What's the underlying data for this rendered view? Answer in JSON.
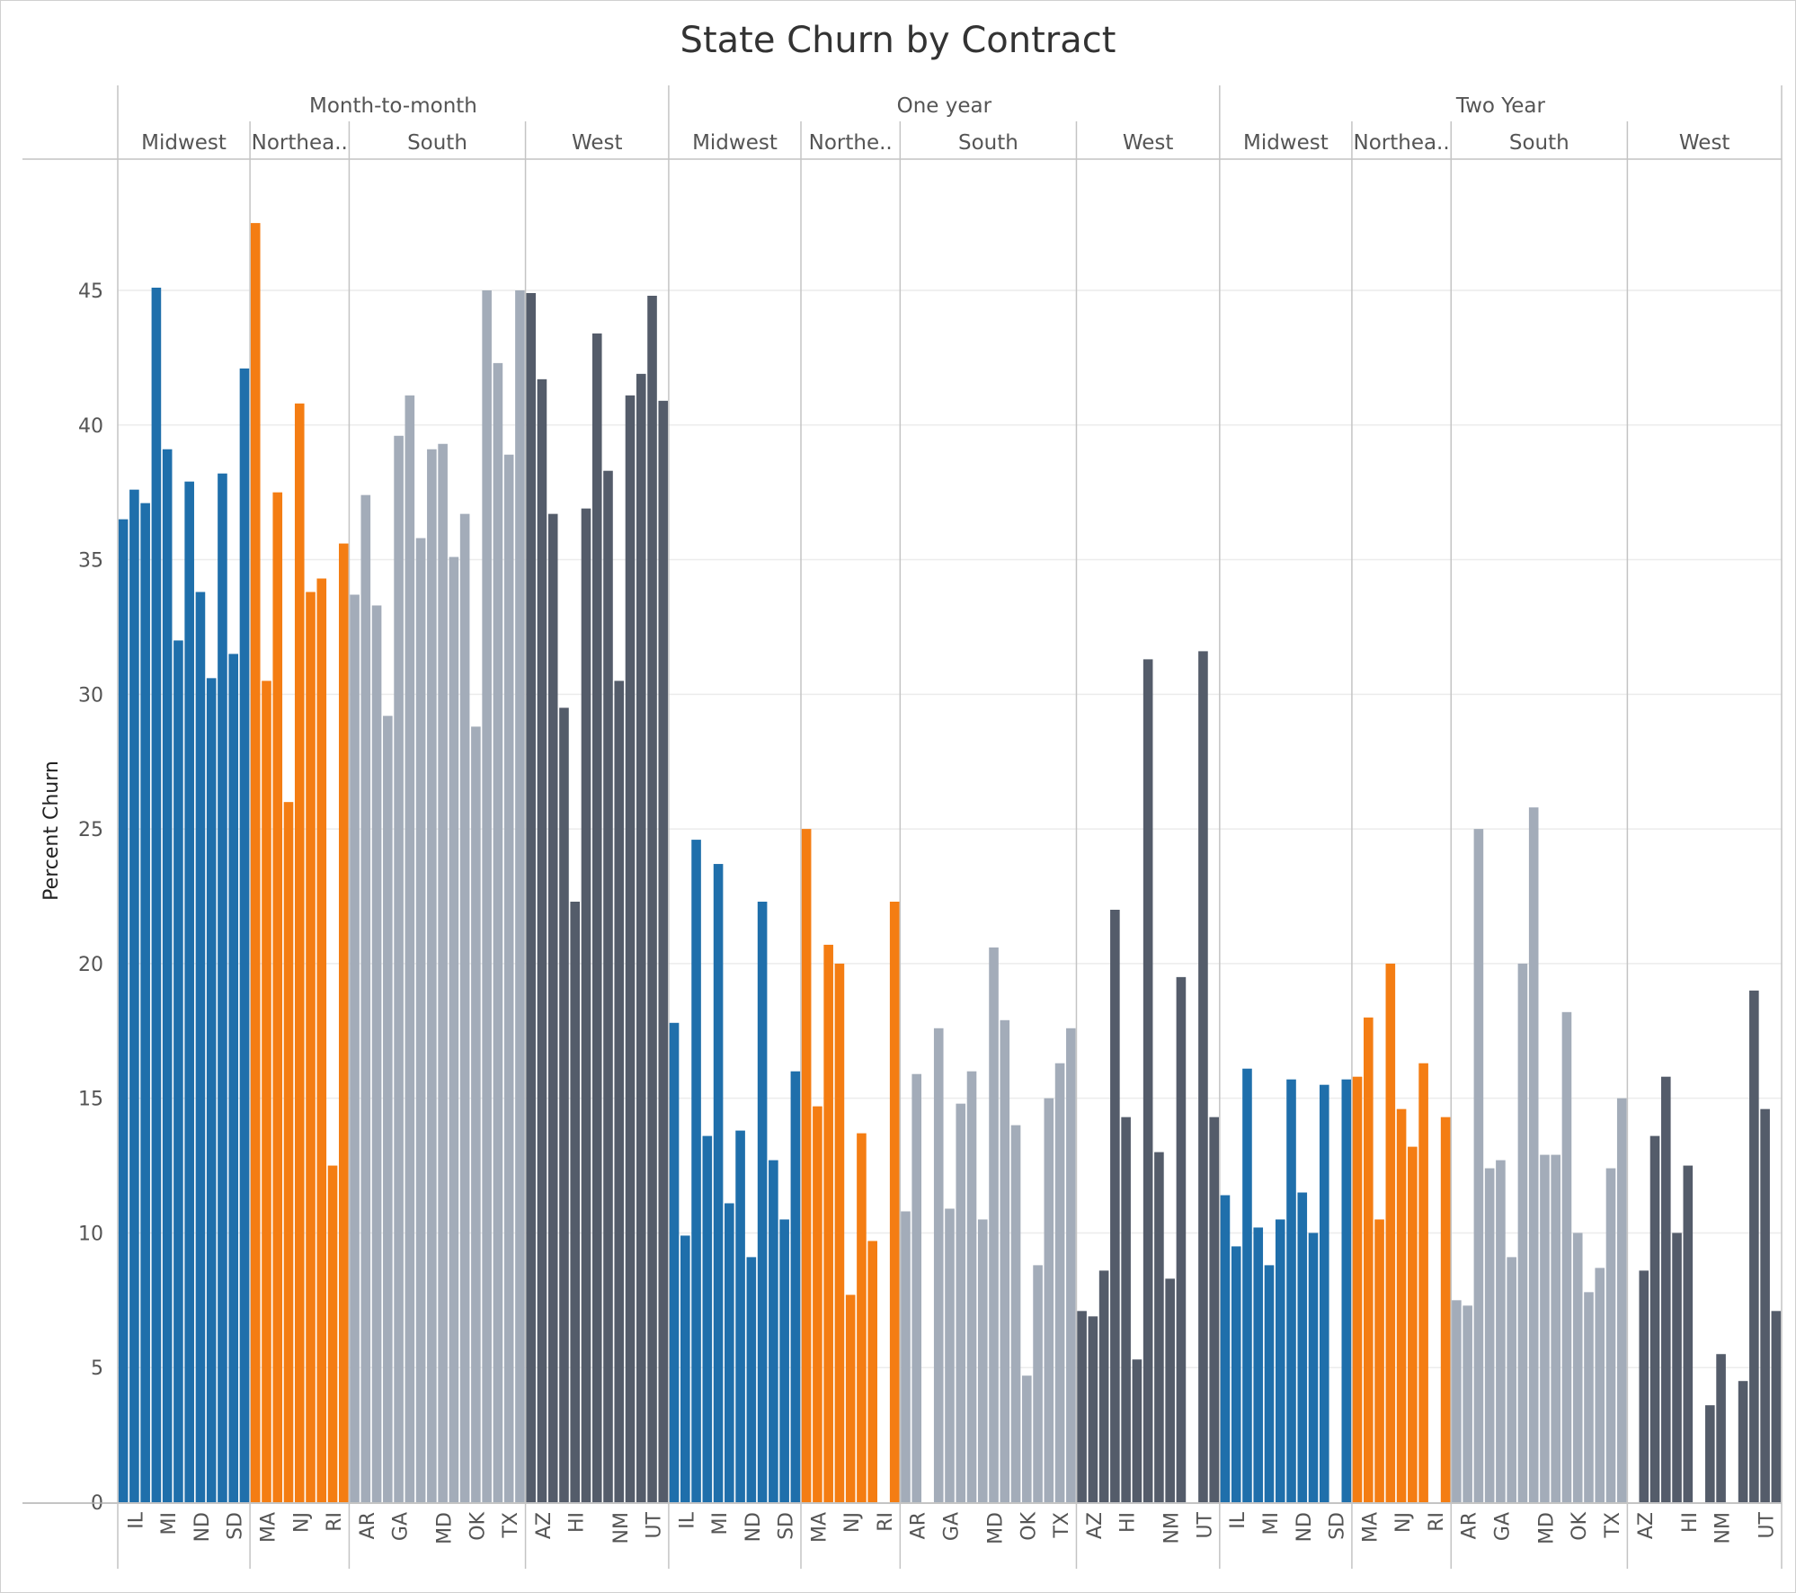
{
  "chart_data": {
    "type": "bar",
    "title": "State Churn by Contract",
    "ylabel": "Percent Churn",
    "xlabel": "",
    "ylim": [
      0,
      50
    ],
    "yticks": [
      0,
      5,
      10,
      15,
      20,
      25,
      30,
      35,
      40,
      45
    ],
    "grid": true,
    "colors": {
      "Midwest": "#1f6fab",
      "Northeast": "#f47d13",
      "South": "#a3acb9",
      "West": "#545c6a"
    },
    "contracts": [
      {
        "name": "Month-to-month",
        "regions": [
          {
            "name": "Midwest",
            "label": "Midwest",
            "color_key": "Midwest",
            "tick_labels": [
              "IL",
              "MI",
              "ND",
              "SD"
            ],
            "values": [
              36.5,
              37.6,
              37.1,
              45.1,
              39.1,
              32.0,
              37.9,
              33.8,
              30.6,
              38.2,
              31.5,
              42.1
            ]
          },
          {
            "name": "Northeast",
            "label": "Northea..",
            "color_key": "Northeast",
            "tick_labels": [
              "MA",
              "NJ",
              "RI"
            ],
            "values": [
              47.5,
              30.5,
              37.5,
              26.0,
              40.8,
              33.8,
              34.3,
              12.5,
              35.6
            ]
          },
          {
            "name": "South",
            "label": "South",
            "color_key": "South",
            "tick_labels": [
              "AR",
              "GA",
              "MD",
              "OK",
              "TX"
            ],
            "values": [
              33.7,
              37.4,
              33.3,
              29.2,
              39.6,
              41.1,
              35.8,
              39.1,
              39.3,
              35.1,
              36.7,
              28.8,
              45.0,
              42.3,
              38.9,
              45.0
            ]
          },
          {
            "name": "West",
            "label": "West",
            "color_key": "West",
            "tick_labels": [
              "AZ",
              "HI",
              "NM",
              "UT"
            ],
            "values": [
              44.9,
              41.7,
              36.7,
              29.5,
              22.3,
              36.9,
              43.4,
              38.3,
              30.5,
              41.1,
              41.9,
              44.8,
              40.9
            ]
          }
        ]
      },
      {
        "name": "One year",
        "regions": [
          {
            "name": "Midwest",
            "label": "Midwest",
            "color_key": "Midwest",
            "tick_labels": [
              "IL",
              "MI",
              "ND",
              "SD"
            ],
            "values": [
              17.8,
              9.9,
              24.6,
              13.6,
              23.7,
              11.1,
              13.8,
              9.1,
              22.3,
              12.7,
              10.5,
              16.0
            ]
          },
          {
            "name": "Northeast",
            "label": "Northe..",
            "color_key": "Northeast",
            "tick_labels": [
              "MA",
              "NJ",
              "RI"
            ],
            "values": [
              25.0,
              14.7,
              20.7,
              20.0,
              7.7,
              13.7,
              9.7,
              0,
              22.3
            ]
          },
          {
            "name": "South",
            "label": "South",
            "color_key": "South",
            "tick_labels": [
              "AR",
              "GA",
              "MD",
              "OK",
              "TX"
            ],
            "values": [
              10.8,
              15.9,
              0,
              17.6,
              10.9,
              14.8,
              16.0,
              10.5,
              20.6,
              17.9,
              14.0,
              4.7,
              8.8,
              15.0,
              16.3,
              17.6
            ]
          },
          {
            "name": "West",
            "label": "West",
            "color_key": "West",
            "tick_labels": [
              "AZ",
              "HI",
              "NM",
              "UT"
            ],
            "values": [
              7.1,
              6.9,
              8.6,
              22.0,
              14.3,
              5.3,
              31.3,
              13.0,
              8.3,
              19.5,
              0,
              31.6,
              14.3
            ]
          }
        ]
      },
      {
        "name": "Two Year",
        "regions": [
          {
            "name": "Midwest",
            "label": "Midwest",
            "color_key": "Midwest",
            "tick_labels": [
              "IL",
              "MI",
              "ND",
              "SD"
            ],
            "values": [
              11.4,
              9.5,
              16.1,
              10.2,
              8.8,
              10.5,
              15.7,
              11.5,
              10.0,
              15.5,
              0,
              15.7
            ]
          },
          {
            "name": "Northeast",
            "label": "Northea..",
            "color_key": "Northeast",
            "tick_labels": [
              "MA",
              "NJ",
              "RI"
            ],
            "values": [
              15.8,
              18.0,
              10.5,
              20.0,
              14.6,
              13.2,
              16.3,
              0,
              14.3
            ]
          },
          {
            "name": "South",
            "label": "South",
            "color_key": "South",
            "tick_labels": [
              "AR",
              "GA",
              "MD",
              "OK",
              "TX"
            ],
            "values": [
              7.5,
              7.3,
              25.0,
              12.4,
              12.7,
              9.1,
              20.0,
              25.8,
              12.9,
              12.9,
              18.2,
              10.0,
              7.8,
              8.7,
              12.4,
              15.0
            ]
          },
          {
            "name": "West",
            "label": "West",
            "color_key": "West",
            "tick_labels": [
              "AZ",
              "HI",
              "NM",
              "UT"
            ],
            "values": [
              0,
              8.6,
              13.6,
              15.8,
              10.0,
              12.5,
              0,
              3.6,
              5.5,
              0,
              4.5,
              19.0,
              14.6,
              7.1
            ]
          }
        ]
      }
    ]
  }
}
